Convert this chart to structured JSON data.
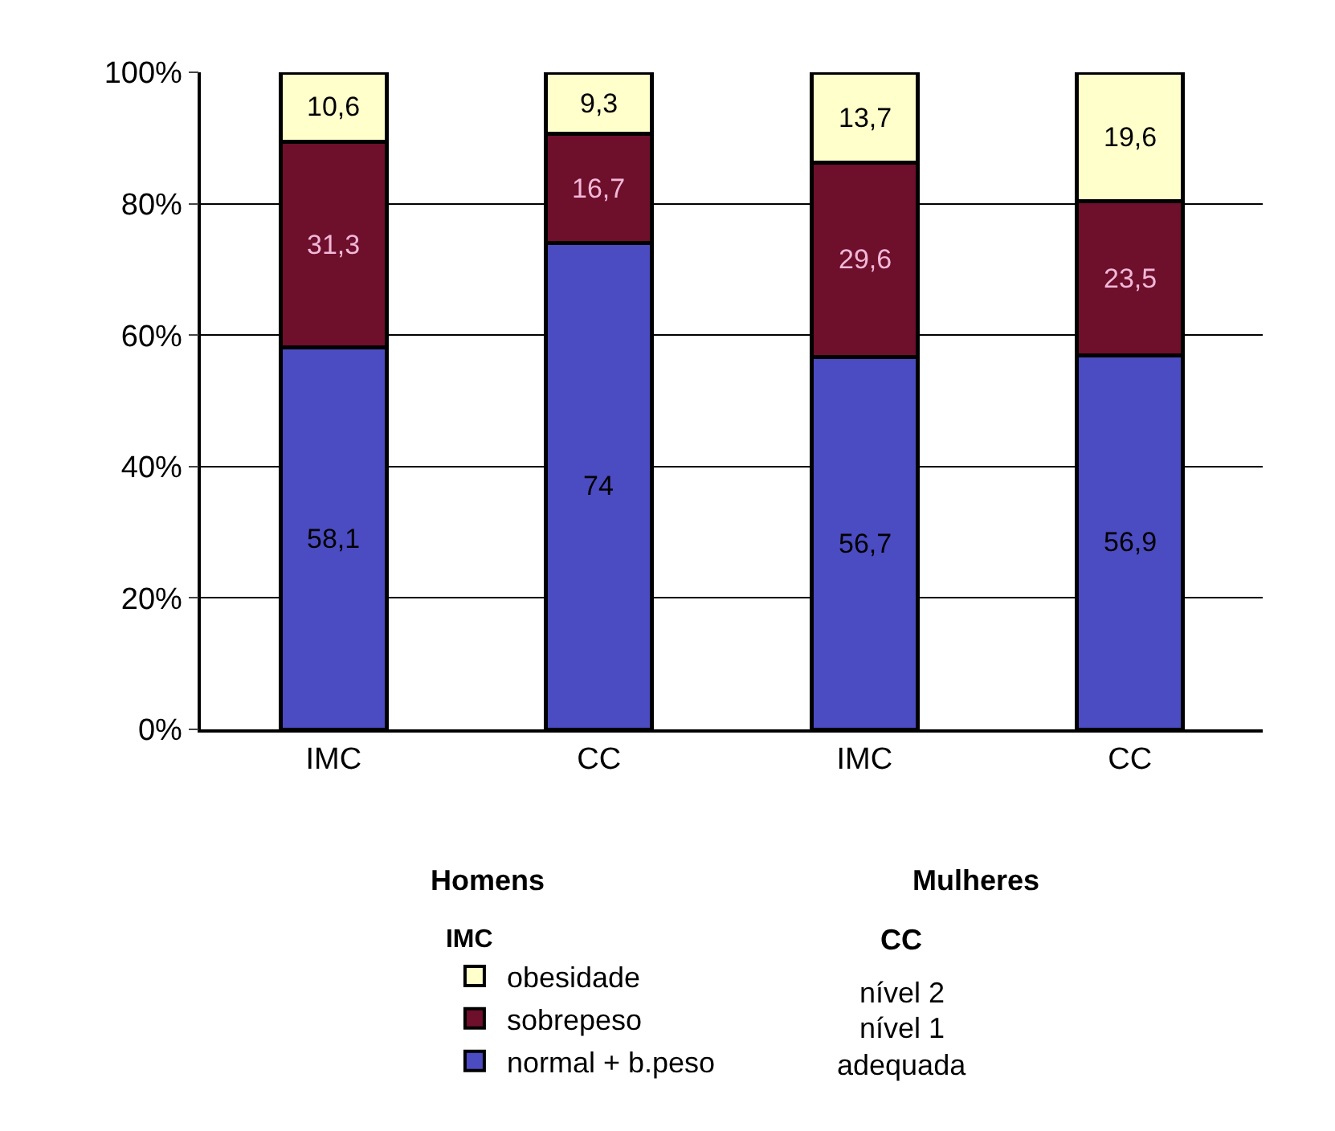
{
  "chart_data": {
    "type": "bar",
    "stacked": true,
    "categories": [
      "IMC",
      "CC",
      "IMC",
      "CC"
    ],
    "series": [
      {
        "name": "normal + b.peso",
        "color": "#4b4bc2",
        "values": [
          58.1,
          74,
          56.7,
          56.9
        ],
        "value_labels": [
          "58,1",
          "74",
          "56,7",
          "56,9"
        ]
      },
      {
        "name": "sobrepeso",
        "color": "#6e0f2c",
        "values": [
          31.3,
          16.7,
          29.6,
          23.5
        ],
        "value_labels": [
          "31,3",
          "16,7",
          "29,6",
          "23,5"
        ]
      },
      {
        "name": "obesidade",
        "color": "#ffffcc",
        "values": [
          10.6,
          9.3,
          13.7,
          19.6
        ],
        "value_labels": [
          "10,6",
          "9,3",
          "13,7",
          "19,6"
        ]
      }
    ],
    "ylim": [
      0,
      100
    ],
    "yticks": [
      {
        "value": 0,
        "label": "0%"
      },
      {
        "value": 20,
        "label": "20%"
      },
      {
        "value": 40,
        "label": "40%"
      },
      {
        "value": 60,
        "label": "60%"
      },
      {
        "value": 80,
        "label": "80%"
      },
      {
        "value": 100,
        "label": "100%"
      }
    ],
    "grid": "y",
    "legend": "bottom",
    "legend_title": "IMC",
    "annotations": [
      "Homens",
      "Mulheres",
      "CC",
      "nível 2",
      "nível 1",
      "adequada"
    ]
  }
}
